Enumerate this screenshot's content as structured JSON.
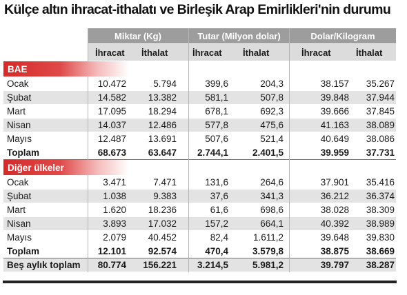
{
  "title": "Külçe altın ihracat-ithalatı ve Birleşik Arap Emirlikleri'nin durumu",
  "groups": [
    "Miktar (Kg)",
    "Tutar (Milyon dolar)",
    "Dolar/Kilogram"
  ],
  "subheaders": [
    "İhracat",
    "İthalat",
    "İhracat",
    "İthalat",
    "İhracat",
    "İthalat"
  ],
  "sections": [
    {
      "name": "BAE",
      "rows": [
        {
          "label": "Ocak",
          "values": [
            "10.472",
            "5.794",
            "399,6",
            "204,3",
            "38.157",
            "35.267"
          ]
        },
        {
          "label": "Şubat",
          "values": [
            "14.582",
            "13.382",
            "581,1",
            "507,8",
            "39.848",
            "37.944"
          ]
        },
        {
          "label": "Mart",
          "values": [
            "17.095",
            "18.294",
            "678,1",
            "692,3",
            "39.666",
            "37.845"
          ]
        },
        {
          "label": "Nisan",
          "values": [
            "14.037",
            "12.486",
            "577,8",
            "475,6",
            "41.163",
            "38.089"
          ]
        },
        {
          "label": "Mayıs",
          "values": [
            "12.487",
            "13.691",
            "507,6",
            "521,4",
            "40.649",
            "38.086"
          ]
        }
      ],
      "total": {
        "label": "Toplam",
        "values": [
          "68.673",
          "63.647",
          "2.744,1",
          "2.401,5",
          "39.959",
          "37.731"
        ]
      }
    },
    {
      "name": "Diğer ülkeler",
      "rows": [
        {
          "label": "Ocak",
          "values": [
            "3.471",
            "7.471",
            "131,6",
            "264,6",
            "37.901",
            "35.416"
          ]
        },
        {
          "label": "Şubat",
          "values": [
            "1.038",
            "9.383",
            "37,6",
            "341,3",
            "36.212",
            "36.374"
          ]
        },
        {
          "label": "Mart",
          "values": [
            "1.620",
            "18.236",
            "61,6",
            "698,6",
            "38.028",
            "38.309"
          ]
        },
        {
          "label": "Nisan",
          "values": [
            "3.893",
            "17.032",
            "157,2",
            "664,1",
            "40.392",
            "38.989"
          ]
        },
        {
          "label": "Mayıs",
          "values": [
            "2.079",
            "40.452",
            "82,4",
            "1.611,2",
            "39.648",
            "39.830"
          ]
        }
      ],
      "total": {
        "label": "Toplam",
        "values": [
          "12.101",
          "92.574",
          "470,4",
          "3.579,8",
          "38.875",
          "38.669"
        ]
      }
    }
  ],
  "grand_total": {
    "label": "Beş aylık toplam",
    "values": [
      "80.774",
      "156.221",
      "3.214,5",
      "5.981,2",
      "39.797",
      "38.287"
    ]
  },
  "colors": {
    "section_red": "#d42a2a",
    "header_gray": "#9d9d9d",
    "subheader_gray": "#dcdcdc",
    "row_stripe": "#e3e3e3"
  }
}
